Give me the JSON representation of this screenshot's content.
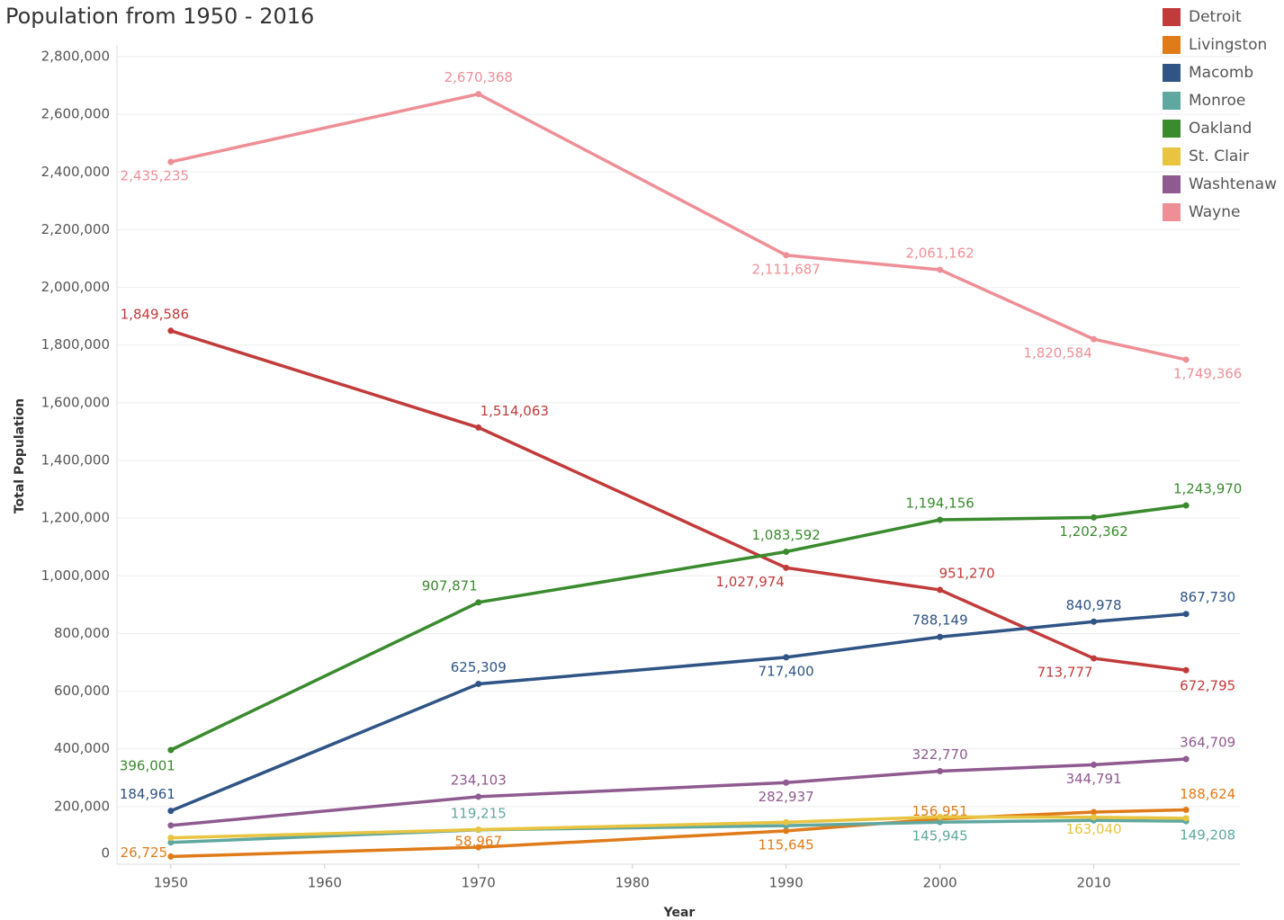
{
  "chart_data": {
    "type": "line",
    "title": "Population from 1950 - 2016",
    "x_label": "Year",
    "y_label": "Total Population",
    "x": [
      1950,
      1970,
      1990,
      2000,
      2010,
      2016
    ],
    "xlim": [
      1946.5,
      2019.5
    ],
    "xticks": [
      1950,
      1960,
      1970,
      1980,
      1990,
      2000,
      2010
    ],
    "ylim": [
      0,
      2800000
    ],
    "yticks": [
      0,
      {
        "value": 200000,
        "label": "200,000"
      },
      {
        "value": 400000,
        "label": "400,000"
      },
      {
        "value": 600000,
        "label": "600,000"
      },
      {
        "value": 800000,
        "label": "800,000"
      },
      {
        "value": 1000000,
        "label": "1,000,000"
      },
      {
        "value": 1200000,
        "label": "1,200,000"
      },
      {
        "value": 1400000,
        "label": "1,400,000"
      },
      {
        "value": 1600000,
        "label": "1,600,000"
      },
      {
        "value": 1800000,
        "label": "1,800,000"
      },
      {
        "value": 2000000,
        "label": "2,000,000"
      },
      {
        "value": 2200000,
        "label": "2,200,000"
      },
      {
        "value": 2400000,
        "label": "2,400,000"
      },
      {
        "value": 2600000,
        "label": "2,600,000"
      },
      {
        "value": 2800000,
        "label": "2,800,000"
      }
    ],
    "grid": true,
    "legend": "right",
    "series": [
      {
        "name": "Detroit",
        "color": "#c23b3b",
        "values": [
          1849586,
          1514063,
          1027974,
          951270,
          713777,
          672795
        ],
        "value_labels": [
          "1,849,586",
          "1,514,063",
          "1,027,974",
          "951,270",
          "713,777",
          "672,795"
        ]
      },
      {
        "name": "Livingston",
        "color": "#e07b1a",
        "values": [
          26725,
          58967,
          115645,
          156951,
          180967,
          188624
        ],
        "value_labels": [
          "26,725",
          "58,967",
          "115,645",
          "156,951",
          null,
          "188,624"
        ]
      },
      {
        "name": "Macomb",
        "color": "#2f5485",
        "values": [
          184961,
          625309,
          717400,
          788149,
          840978,
          867730
        ],
        "value_labels": [
          "184,961",
          "625,309",
          "717,400",
          "788,149",
          "840,978",
          "867,730"
        ]
      },
      {
        "name": "Monroe",
        "color": "#5fa8a0",
        "values": [
          75666,
          119215,
          133600,
          145945,
          152021,
          149208
        ],
        "value_labels": [
          null,
          "119,215",
          null,
          "145,945",
          null,
          "149,208"
        ]
      },
      {
        "name": "Oakland",
        "color": "#3a8a2e",
        "values": [
          396001,
          907871,
          1083592,
          1194156,
          1202362,
          1243970
        ],
        "value_labels": [
          "396,001",
          "907,871",
          "1,083,592",
          "1,194,156",
          "1,202,362",
          "1,243,970"
        ]
      },
      {
        "name": "St. Clair",
        "color": "#e8c440",
        "values": [
          91599,
          120175,
          145607,
          164235,
          163040,
          159566
        ],
        "value_labels": [
          null,
          null,
          null,
          null,
          "163,040",
          null
        ]
      },
      {
        "name": "Washtenaw",
        "color": "#8f5a8f",
        "values": [
          134606,
          234103,
          282937,
          322770,
          344791,
          364709
        ],
        "value_labels": [
          null,
          "234,103",
          "282,937",
          "322,770",
          "344,791",
          "364,709"
        ]
      },
      {
        "name": "Wayne",
        "color": "#ee8f97",
        "values": [
          2435235,
          2670368,
          2111687,
          2061162,
          1820584,
          1749366
        ],
        "value_labels": [
          "2,435,235",
          "2,670,368",
          "2,111,687",
          "2,061,162",
          "1,820,584",
          "1,749,366"
        ]
      }
    ]
  }
}
